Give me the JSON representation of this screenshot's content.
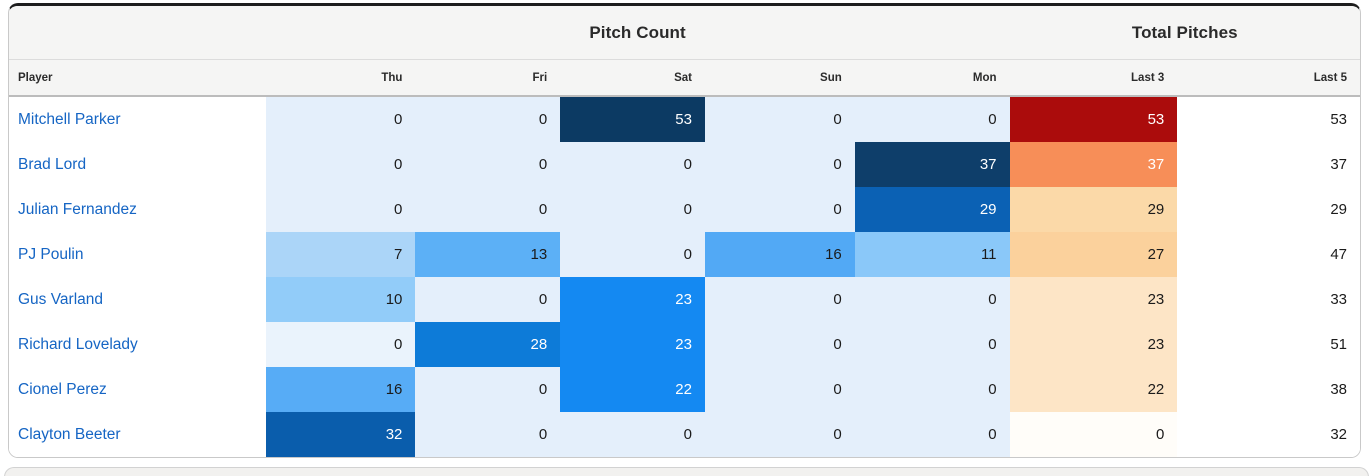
{
  "group_headers": [
    {
      "label": "Pitch Count"
    },
    {
      "label": "Total Pitches"
    }
  ],
  "columns": [
    {
      "label": "Player"
    },
    {
      "label": "Thu"
    },
    {
      "label": "Fri"
    },
    {
      "label": "Sat"
    },
    {
      "label": "Sun"
    },
    {
      "label": "Mon"
    },
    {
      "label": "Last 3"
    },
    {
      "label": "Last 5"
    }
  ],
  "theme": {
    "header_bg": "#f5f5f4",
    "panel_top_border": "#1d1d1d",
    "panel_border": "#c9c9c9",
    "player_link_color": "#1565c4",
    "zero_day_cell_bg": "#e4effb",
    "zero_total_cell_bg": "#fffdf9"
  },
  "rows": [
    {
      "player": "Mitchell Parker",
      "cells": [
        {
          "value": "0",
          "bg": "#e4effb",
          "fg": "#1b1b1b"
        },
        {
          "value": "0",
          "bg": "#e4effb",
          "fg": "#1b1b1b"
        },
        {
          "value": "53",
          "bg": "#0c3a63",
          "fg": "#ffffff"
        },
        {
          "value": "0",
          "bg": "#e4effb",
          "fg": "#1b1b1b"
        },
        {
          "value": "0",
          "bg": "#e4effb",
          "fg": "#1b1b1b"
        },
        {
          "value": "53",
          "bg": "#ab0c0c",
          "fg": "#ffffff"
        },
        {
          "value": "53",
          "bg": "#ffffff",
          "fg": "#1b1b1b"
        }
      ]
    },
    {
      "player": "Brad Lord",
      "cells": [
        {
          "value": "0",
          "bg": "#e4effb",
          "fg": "#1b1b1b"
        },
        {
          "value": "0",
          "bg": "#e4effb",
          "fg": "#1b1b1b"
        },
        {
          "value": "0",
          "bg": "#e4effb",
          "fg": "#1b1b1b"
        },
        {
          "value": "0",
          "bg": "#e4effb",
          "fg": "#1b1b1b"
        },
        {
          "value": "37",
          "bg": "#0e3e6a",
          "fg": "#ffffff"
        },
        {
          "value": "37",
          "bg": "#f78e58",
          "fg": "#ffffff"
        },
        {
          "value": "37",
          "bg": "#ffffff",
          "fg": "#1b1b1b"
        }
      ]
    },
    {
      "player": "Julian Fernandez",
      "cells": [
        {
          "value": "0",
          "bg": "#e4effb",
          "fg": "#1b1b1b"
        },
        {
          "value": "0",
          "bg": "#e4effb",
          "fg": "#1b1b1b"
        },
        {
          "value": "0",
          "bg": "#e4effb",
          "fg": "#1b1b1b"
        },
        {
          "value": "0",
          "bg": "#e4effb",
          "fg": "#1b1b1b"
        },
        {
          "value": "29",
          "bg": "#0b61b4",
          "fg": "#ffffff"
        },
        {
          "value": "29",
          "bg": "#fbd9a8",
          "fg": "#1b1b1b"
        },
        {
          "value": "29",
          "bg": "#ffffff",
          "fg": "#1b1b1b"
        }
      ]
    },
    {
      "player": "PJ Poulin",
      "cells": [
        {
          "value": "7",
          "bg": "#abd5f8",
          "fg": "#1b1b1b"
        },
        {
          "value": "13",
          "bg": "#5cb0f6",
          "fg": "#1b1b1b"
        },
        {
          "value": "0",
          "bg": "#e4effb",
          "fg": "#1b1b1b"
        },
        {
          "value": "16",
          "bg": "#52a9f5",
          "fg": "#1b1b1b"
        },
        {
          "value": "11",
          "bg": "#8ac8f9",
          "fg": "#1b1b1b"
        },
        {
          "value": "27",
          "bg": "#fbd19c",
          "fg": "#1b1b1b"
        },
        {
          "value": "47",
          "bg": "#ffffff",
          "fg": "#1b1b1b"
        }
      ]
    },
    {
      "player": "Gus Varland",
      "cells": [
        {
          "value": "10",
          "bg": "#92ccf9",
          "fg": "#1b1b1b"
        },
        {
          "value": "0",
          "bg": "#e4effb",
          "fg": "#1b1b1b"
        },
        {
          "value": "23",
          "bg": "#1489f2",
          "fg": "#ffffff"
        },
        {
          "value": "0",
          "bg": "#e4effb",
          "fg": "#1b1b1b"
        },
        {
          "value": "0",
          "bg": "#e4effb",
          "fg": "#1b1b1b"
        },
        {
          "value": "23",
          "bg": "#fde5c6",
          "fg": "#1b1b1b"
        },
        {
          "value": "33",
          "bg": "#ffffff",
          "fg": "#1b1b1b"
        }
      ]
    },
    {
      "player": "Richard Lovelady",
      "cells": [
        {
          "value": "0",
          "bg": "#eaf3fc",
          "fg": "#1b1b1b"
        },
        {
          "value": "28",
          "bg": "#0d7bd8",
          "fg": "#ffffff"
        },
        {
          "value": "23",
          "bg": "#1489f2",
          "fg": "#ffffff"
        },
        {
          "value": "0",
          "bg": "#e4effb",
          "fg": "#1b1b1b"
        },
        {
          "value": "0",
          "bg": "#e4effb",
          "fg": "#1b1b1b"
        },
        {
          "value": "23",
          "bg": "#fde5c6",
          "fg": "#1b1b1b"
        },
        {
          "value": "51",
          "bg": "#ffffff",
          "fg": "#1b1b1b"
        }
      ]
    },
    {
      "player": "Cionel Perez",
      "cells": [
        {
          "value": "16",
          "bg": "#57acf6",
          "fg": "#1b1b1b"
        },
        {
          "value": "0",
          "bg": "#e4effb",
          "fg": "#1b1b1b"
        },
        {
          "value": "22",
          "bg": "#1489f2",
          "fg": "#ffffff"
        },
        {
          "value": "0",
          "bg": "#e4effb",
          "fg": "#1b1b1b"
        },
        {
          "value": "0",
          "bg": "#e4effb",
          "fg": "#1b1b1b"
        },
        {
          "value": "22",
          "bg": "#fde5c6",
          "fg": "#1b1b1b"
        },
        {
          "value": "38",
          "bg": "#ffffff",
          "fg": "#1b1b1b"
        }
      ]
    },
    {
      "player": "Clayton Beeter",
      "cells": [
        {
          "value": "32",
          "bg": "#0a5dac",
          "fg": "#ffffff"
        },
        {
          "value": "0",
          "bg": "#e4effb",
          "fg": "#1b1b1b"
        },
        {
          "value": "0",
          "bg": "#e4effb",
          "fg": "#1b1b1b"
        },
        {
          "value": "0",
          "bg": "#e4effb",
          "fg": "#1b1b1b"
        },
        {
          "value": "0",
          "bg": "#e4effb",
          "fg": "#1b1b1b"
        },
        {
          "value": "0",
          "bg": "#fffdf9",
          "fg": "#1b1b1b"
        },
        {
          "value": "32",
          "bg": "#ffffff",
          "fg": "#1b1b1b"
        }
      ]
    }
  ]
}
